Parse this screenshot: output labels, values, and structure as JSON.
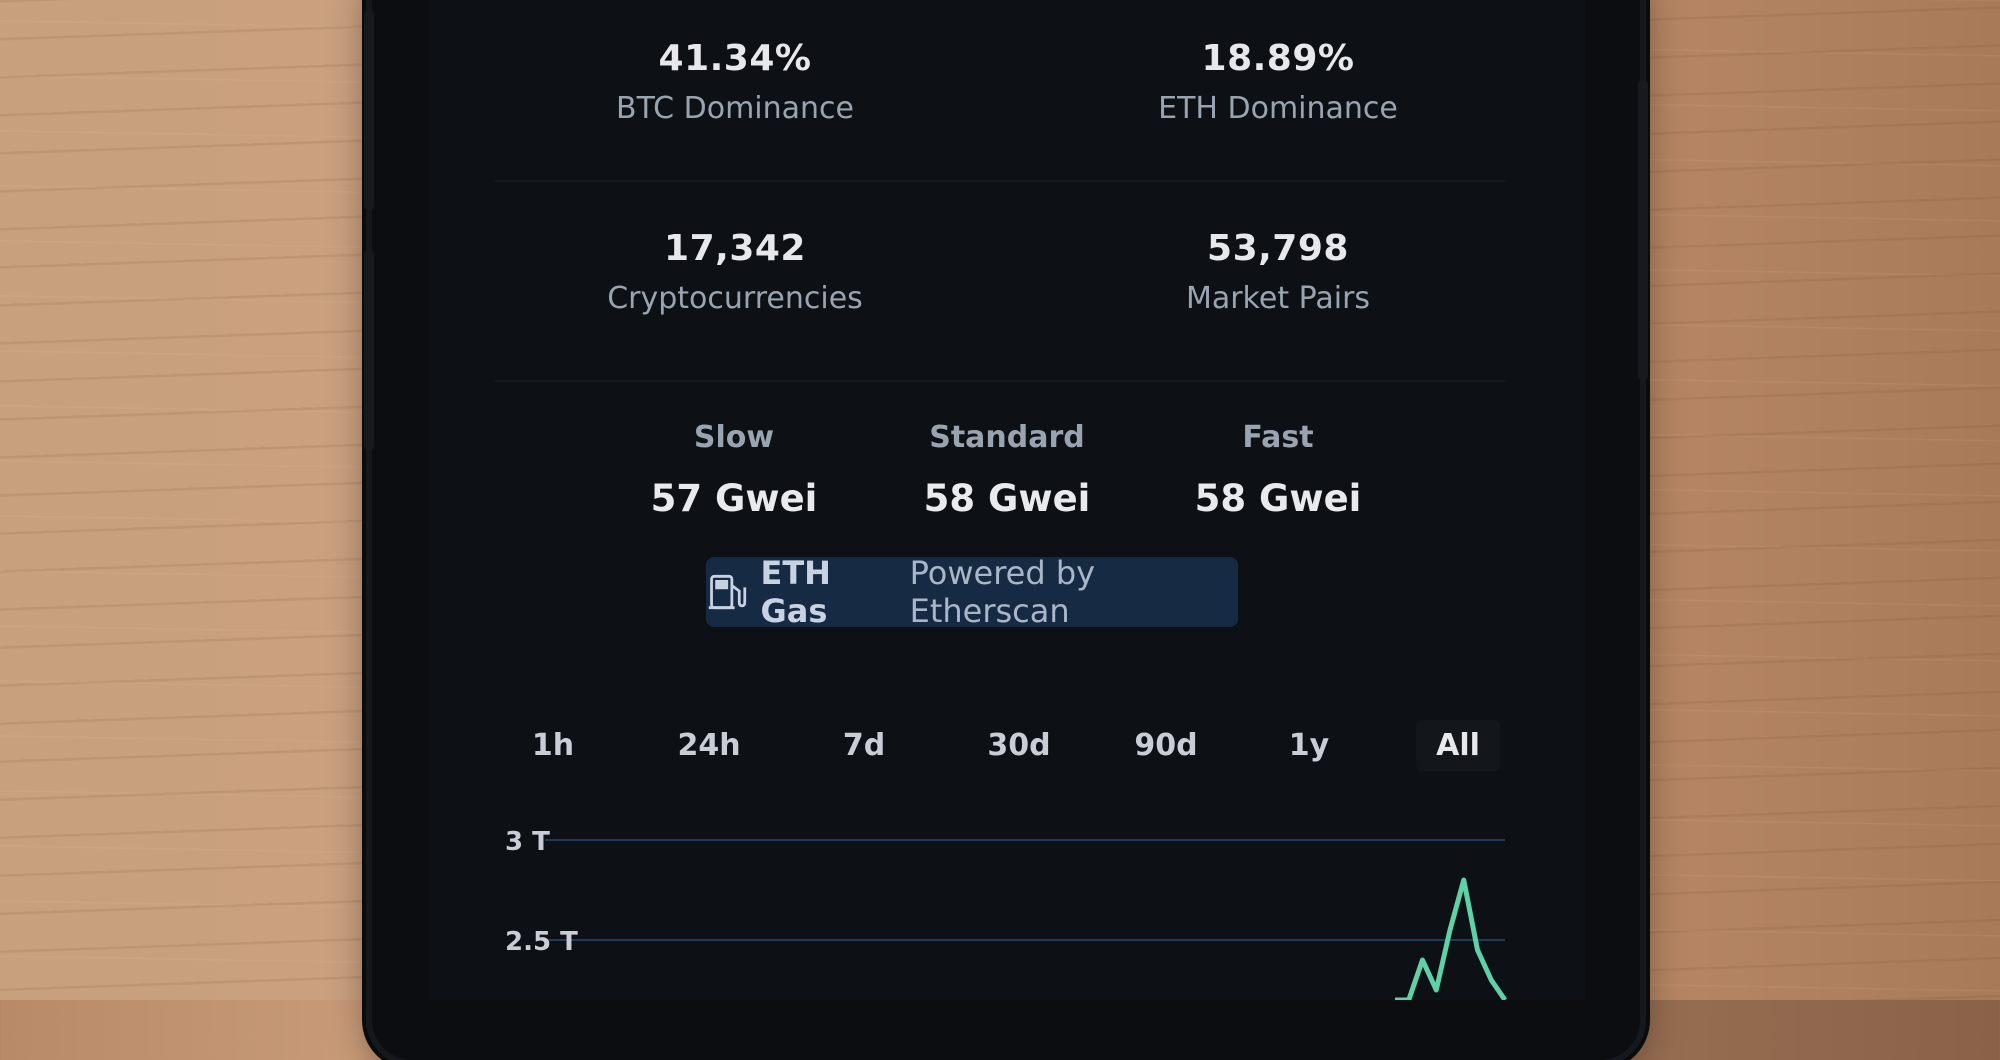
{
  "stats": [
    {
      "value": "41.34%",
      "label": "BTC Dominance"
    },
    {
      "value": "18.89%",
      "label": "ETH Dominance"
    },
    {
      "value": "17,342",
      "label": "Cryptocurrencies"
    },
    {
      "value": "53,798",
      "label": "Market Pairs"
    }
  ],
  "gas": [
    {
      "label": "Slow",
      "value": "57 Gwei"
    },
    {
      "label": "Standard",
      "value": "58 Gwei"
    },
    {
      "label": "Fast",
      "value": "58 Gwei"
    }
  ],
  "badge": {
    "icon": "gas-pump-icon",
    "name": "ETH Gas",
    "powered": "Powered by Etherscan"
  },
  "tabs": [
    "1h",
    "24h",
    "7d",
    "30d",
    "90d",
    "1y",
    "All"
  ],
  "active_tab": "All",
  "colors": {
    "background": "#0d1014",
    "accent": "#162a44",
    "line": "#5fd1a8",
    "grid": "#1c3a5a"
  },
  "chart_data": {
    "type": "line",
    "y_ticks": [
      "3 T",
      "2.5 T"
    ],
    "ylim": [
      2.2,
      3.0
    ],
    "series": [
      {
        "x": [
          0,
          1,
          2,
          3,
          4,
          5,
          6,
          7,
          8
        ],
        "values": [
          2.2,
          2.2,
          2.4,
          2.25,
          2.55,
          2.8,
          2.45,
          2.3,
          2.2
        ]
      }
    ]
  }
}
